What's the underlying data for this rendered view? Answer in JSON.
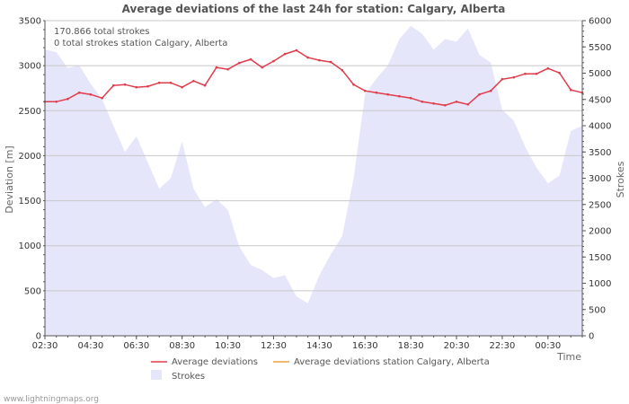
{
  "chart_data": {
    "type": "line",
    "title": "Average deviations of the last 24h for station: Calgary, Alberta",
    "xlabel": "Time",
    "ylabel": "Deviation  [m]",
    "y2label": "Strokes",
    "annotations": [
      "170.866 total strokes",
      "0 total strokes station Calgary, Alberta"
    ],
    "ylim": [
      0,
      3500
    ],
    "y2lim": [
      0,
      6000
    ],
    "yticks": [
      0,
      500,
      1000,
      1500,
      2000,
      2500,
      3000,
      3500
    ],
    "y2ticks": [
      0,
      500,
      1000,
      1500,
      2000,
      2500,
      3000,
      3500,
      4000,
      4500,
      5000,
      5500,
      6000
    ],
    "xticks": [
      "02:30",
      "04:30",
      "06:30",
      "08:30",
      "10:30",
      "12:30",
      "14:30",
      "16:30",
      "18:30",
      "20:30",
      "22:30",
      "00:30"
    ],
    "grid": true,
    "legend": "bottom",
    "series": [
      {
        "name": "Average deviations",
        "color": "#e03c4c",
        "axis": "left",
        "values": [
          2600,
          2600,
          2630,
          2700,
          2680,
          2640,
          2780,
          2790,
          2760,
          2770,
          2810,
          2810,
          2760,
          2830,
          2780,
          2980,
          2960,
          3030,
          3070,
          2980,
          3050,
          3130,
          3170,
          3090,
          3060,
          3040,
          2950,
          2790,
          2720,
          2700,
          2680,
          2660,
          2640,
          2600,
          2580,
          2560,
          2600,
          2570,
          2680,
          2720,
          2850,
          2870,
          2910,
          2910,
          2970,
          2920,
          2730,
          2700
        ]
      },
      {
        "name": "Average deviations station Calgary, Alberta",
        "color": "#f0a040",
        "axis": "left",
        "values": []
      },
      {
        "name": "Strokes",
        "color": "#e6e6fa",
        "axis": "right",
        "type": "area",
        "values": [
          5450,
          5400,
          5100,
          5150,
          4800,
          4500,
          4000,
          3500,
          3800,
          3300,
          2800,
          3000,
          3700,
          2800,
          2450,
          2600,
          2400,
          1700,
          1350,
          1250,
          1100,
          1150,
          750,
          620,
          1150,
          1550,
          1900,
          3000,
          4600,
          4900,
          5150,
          5650,
          5900,
          5750,
          5450,
          5650,
          5600,
          5850,
          5350,
          5200,
          4300,
          4100,
          3600,
          3200,
          2900,
          3050,
          3900,
          4000
        ]
      }
    ]
  },
  "branding": {
    "footer": "www.lightningmaps.org"
  }
}
